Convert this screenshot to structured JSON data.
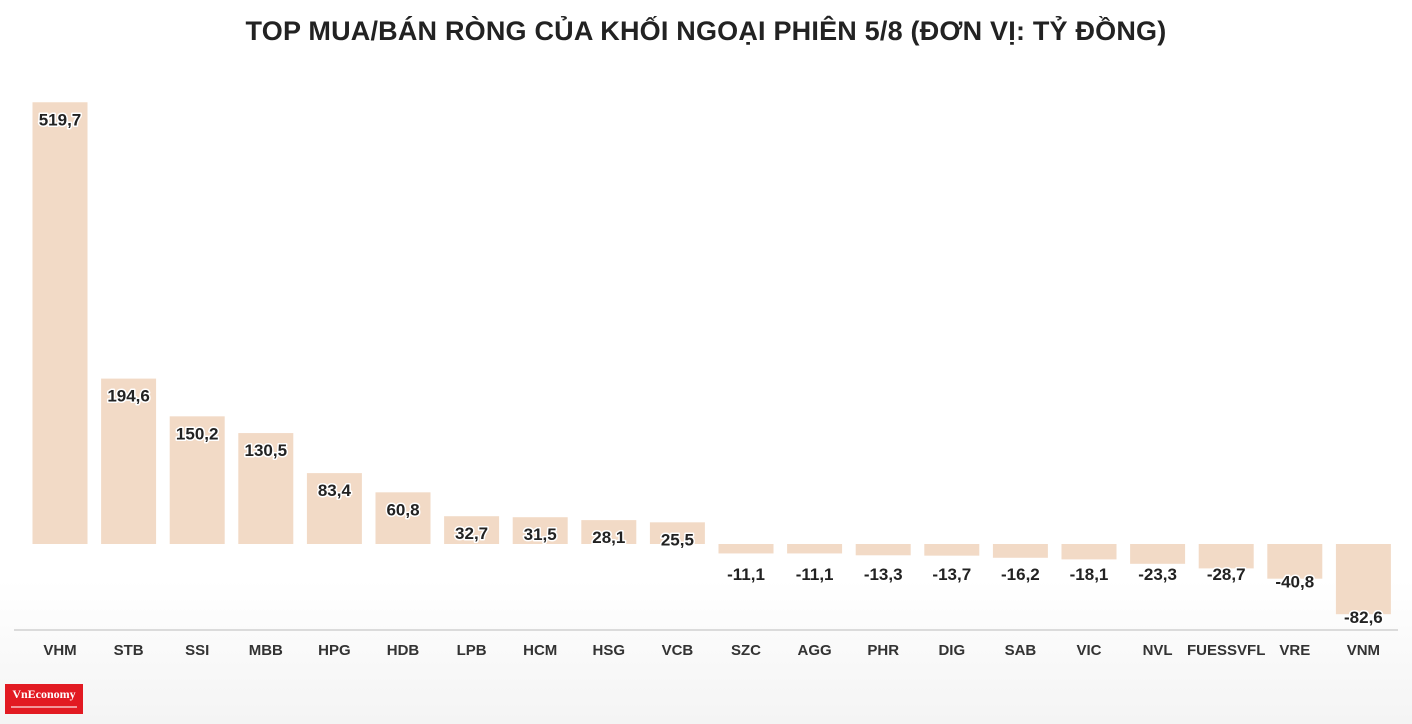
{
  "page": {
    "title": "TOP MUA/BÁN RÒNG CỦA KHỐI NGOẠI PHIÊN 5/8 (ĐƠN VỊ: TỶ ĐỒNG)"
  },
  "logo": {
    "text": "VnEconomy"
  },
  "colors": {
    "bar": "#f2dac6",
    "label_text": "#222222",
    "axis_line": "#bbbbbb",
    "label_outline": "#ffffff",
    "logo_bg": "#e21a22"
  },
  "chart_data": {
    "type": "bar",
    "title": "TOP MUA/BÁN RÒNG CỦA KHỐI NGOẠI PHIÊN 5/8 (ĐƠN VỊ: TỶ ĐỒNG)",
    "categories": [
      "VHM",
      "STB",
      "SSI",
      "MBB",
      "HPG",
      "HDB",
      "LPB",
      "HCM",
      "HSG",
      "VCB",
      "SZC",
      "AGG",
      "PHR",
      "DIG",
      "SAB",
      "VIC",
      "NVL",
      "FUESSVFL",
      "VRE",
      "VNM"
    ],
    "values": [
      519.7,
      194.6,
      150.2,
      130.5,
      83.4,
      60.8,
      32.7,
      31.5,
      28.1,
      25.5,
      -11.1,
      -11.1,
      -13.3,
      -13.7,
      -16.2,
      -18.1,
      -23.3,
      -28.7,
      -40.8,
      -82.6
    ],
    "value_labels": [
      "519,7",
      "194,6",
      "150,2",
      "130,5",
      "83,4",
      "60,8",
      "32,7",
      "31,5",
      "28,1",
      "25,5",
      "-11,1",
      "-11,1",
      "-13,3",
      "-13,7",
      "-16,2",
      "-18,1",
      "-23,3",
      "-28,7",
      "-40,8",
      "-82,6"
    ],
    "ylim": [
      -100,
      519.7
    ],
    "grid": false,
    "legend": "none",
    "xlabel": "",
    "ylabel": ""
  }
}
